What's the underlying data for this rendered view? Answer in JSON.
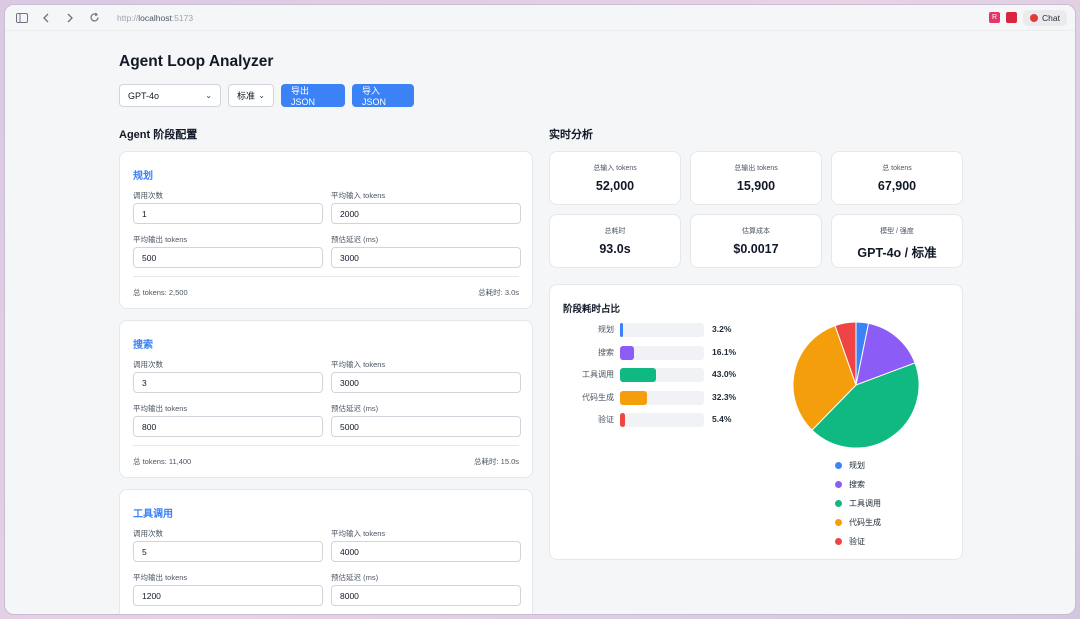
{
  "browser": {
    "url_prefix": "http://",
    "url_host": "localhost",
    "url_port": ":5173",
    "ext_badge": "R",
    "chat_label": "Chat"
  },
  "app": {
    "title": "Agent Loop Analyzer",
    "model_select": "GPT-4o",
    "mode_select": "标准",
    "export_label": "导出 JSON",
    "import_label": "导入 JSON"
  },
  "stages_section": {
    "title": "Agent 阶段配置",
    "labels": {
      "calls": "调用次数",
      "avg_input": "平均输入 tokens",
      "avg_output": "平均输出 tokens",
      "latency": "预估延迟 (ms)"
    },
    "stages": [
      {
        "name": "规划",
        "calls": "1",
        "avg_input": "2000",
        "avg_output": "500",
        "latency": "3000",
        "total_tokens": "总 tokens: 2,500",
        "total_time": "总耗时: 3.0s"
      },
      {
        "name": "搜索",
        "calls": "3",
        "avg_input": "3000",
        "avg_output": "800",
        "latency": "5000",
        "total_tokens": "总 tokens: 11,400",
        "total_time": "总耗时: 15.0s"
      },
      {
        "name": "工具调用",
        "calls": "5",
        "avg_input": "4000",
        "avg_output": "1200",
        "latency": "8000"
      }
    ]
  },
  "analysis": {
    "title": "实时分析",
    "metrics": [
      {
        "label": "总输入 tokens",
        "value": "52,000"
      },
      {
        "label": "总输出 tokens",
        "value": "15,900"
      },
      {
        "label": "总 tokens",
        "value": "67,900"
      },
      {
        "label": "总耗时",
        "value": "93.0s"
      },
      {
        "label": "估算成本",
        "value": "$0.0017"
      },
      {
        "label": "模型 / 强度",
        "value": "GPT-4o / 标准"
      }
    ]
  },
  "chart_data": {
    "type": "pie",
    "title": "阶段耗时占比",
    "categories": [
      "规划",
      "搜索",
      "工具调用",
      "代码生成",
      "验证"
    ],
    "values": [
      3.2,
      16.1,
      43.0,
      32.3,
      5.4
    ],
    "value_labels": [
      "3.2%",
      "16.1%",
      "43.0%",
      "32.3%",
      "5.4%"
    ],
    "colors": [
      "#3b82f6",
      "#8b5cf6",
      "#10b981",
      "#f59e0b",
      "#ef4444"
    ],
    "legend": "bottom"
  }
}
